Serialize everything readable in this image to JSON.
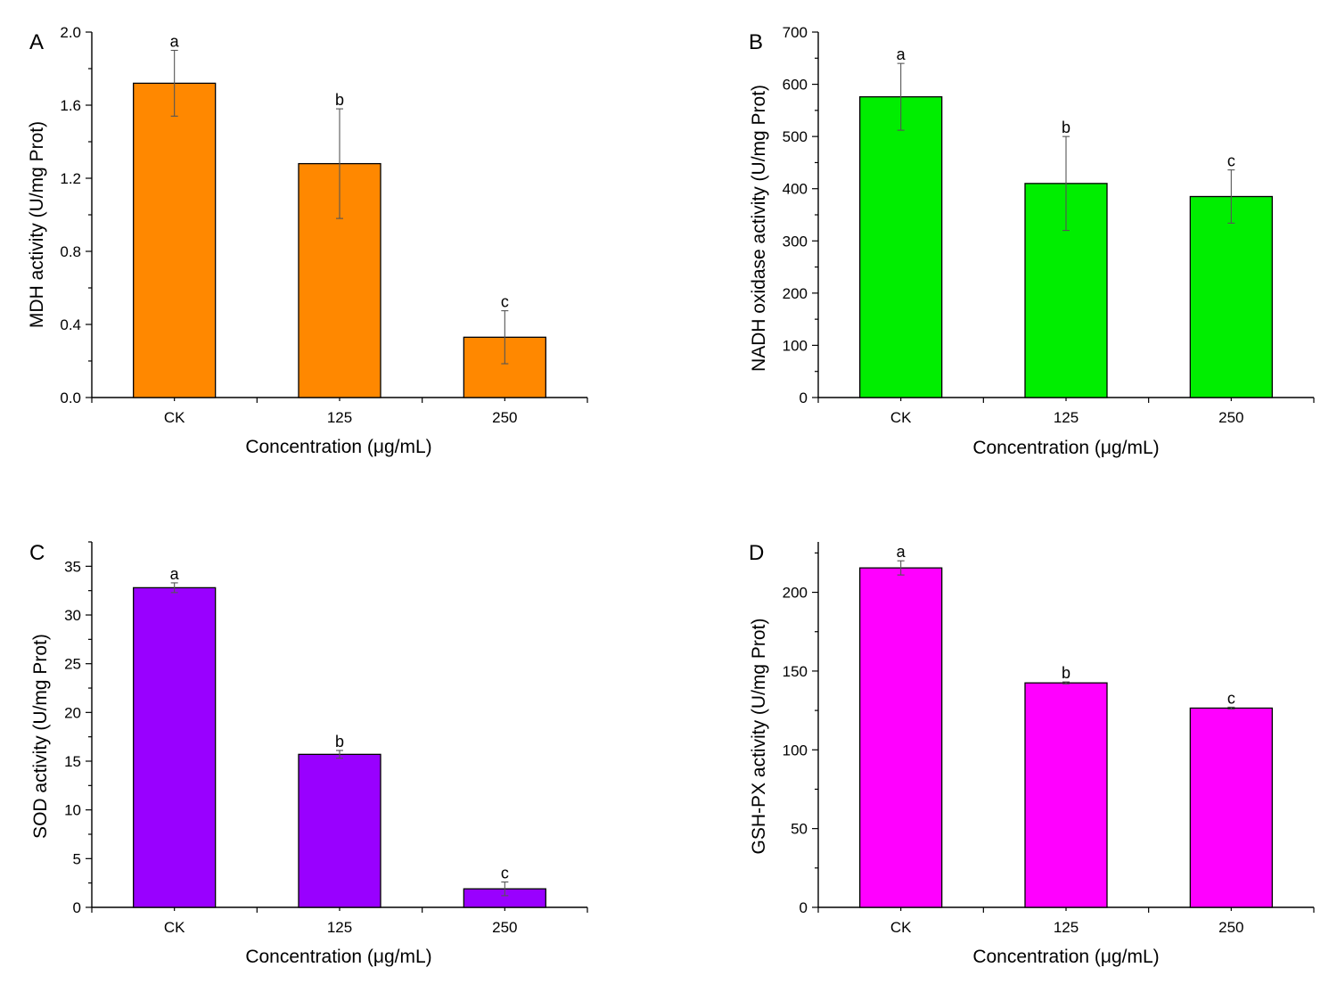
{
  "chart_data": [
    {
      "panel": "A",
      "type": "bar",
      "categories": [
        "CK",
        "125",
        "250"
      ],
      "values": [
        1.72,
        1.28,
        0.33
      ],
      "errors": [
        0.18,
        0.3,
        0.145
      ],
      "significance": [
        "a",
        "b",
        "c"
      ],
      "color": "#ff8800",
      "xlabel": "Concentration (μg/mL)",
      "ylabel": "MDH activity (U/mg Prot)",
      "ylim": [
        0,
        2.0
      ],
      "major_ticks": [
        0.0,
        0.4,
        0.8,
        1.2,
        1.6,
        2.0
      ],
      "tick_labels": [
        "0.0",
        "0.4",
        "0.8",
        "1.2",
        "1.6",
        "2.0"
      ],
      "minor_step": 0.2,
      "ytop": 2.0
    },
    {
      "panel": "B",
      "type": "bar",
      "categories": [
        "CK",
        "125",
        "250"
      ],
      "values": [
        576,
        410,
        385
      ],
      "errors": [
        64,
        90,
        51
      ],
      "significance": [
        "a",
        "b",
        "c"
      ],
      "color": "#00ee00",
      "xlabel": "Concentration (μg/mL)",
      "ylabel": "NADH oxidase activity (U/mg Prot)",
      "ylim": [
        0,
        700
      ],
      "major_ticks": [
        0,
        100,
        200,
        300,
        400,
        500,
        600,
        700
      ],
      "tick_labels": [
        "0",
        "100",
        "200",
        "300",
        "400",
        "500",
        "600",
        "700"
      ],
      "minor_step": 50,
      "ytop": 700
    },
    {
      "panel": "C",
      "type": "bar",
      "categories": [
        "CK",
        "125",
        "250"
      ],
      "values": [
        32.8,
        15.7,
        1.9
      ],
      "errors": [
        0.5,
        0.4,
        0.7
      ],
      "significance": [
        "a",
        "b",
        "c"
      ],
      "color": "#9900ff",
      "xlabel": "Concentration (μg/mL)",
      "ylabel": "SOD activity (U/mg Prot)",
      "ylim": [
        0,
        37.5
      ],
      "major_ticks": [
        0,
        5,
        10,
        15,
        20,
        25,
        30,
        35
      ],
      "tick_labels": [
        "0",
        "5",
        "10",
        "15",
        "20",
        "25",
        "30",
        "35"
      ],
      "minor_step": 2.5,
      "ytop": 37.5
    },
    {
      "panel": "D",
      "type": "bar",
      "categories": [
        "CK",
        "125",
        "250"
      ],
      "values": [
        215.5,
        142.5,
        126.5
      ],
      "errors": [
        4.5,
        0.6,
        0.6
      ],
      "significance": [
        "a",
        "b",
        "c"
      ],
      "color": "#ff00ff",
      "xlabel": "Concentration (μg/mL)",
      "ylabel": "GSH-PX activity (U/mg Prot)",
      "ylim": [
        0,
        232
      ],
      "major_ticks": [
        0,
        50,
        100,
        150,
        200
      ],
      "tick_labels": [
        "0",
        "50",
        "100",
        "150",
        "200"
      ],
      "minor_step": 25,
      "ytop": 232
    }
  ]
}
